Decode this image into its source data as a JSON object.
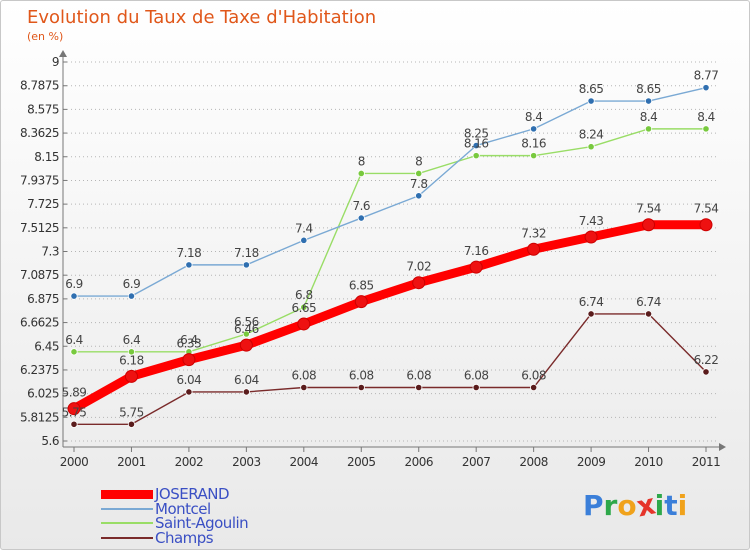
{
  "chart_data": {
    "type": "line",
    "title": "Evolution du Taux de Taxe d'Habitation",
    "subtitle": "(en %)",
    "categories": [
      "2000",
      "2001",
      "2002",
      "2003",
      "2004",
      "2005",
      "2006",
      "2007",
      "2008",
      "2009",
      "2010",
      "2011"
    ],
    "y_ticks": [
      "5.6",
      "5.8125",
      "6.025",
      "6.2375",
      "6.45",
      "6.6625",
      "6.875",
      "7.0875",
      "7.3",
      "7.5125",
      "7.725",
      "7.9375",
      "8.15",
      "8.3625",
      "8.575",
      "8.7875",
      "9"
    ],
    "ylim": [
      5.6,
      9
    ],
    "grid": "horizontal dotted",
    "legend_position": "bottom-left",
    "series": [
      {
        "name": "JOSERAND",
        "color": "#ff0000",
        "values": [
          5.89,
          6.18,
          6.33,
          6.46,
          6.65,
          6.85,
          7.02,
          7.16,
          7.32,
          7.43,
          7.54,
          7.54
        ],
        "labels": [
          "5.89",
          "6.18",
          "6.33",
          "6.46",
          "6.65",
          "6.85",
          "7.02",
          "7.16",
          "7.32",
          "7.43",
          "7.54",
          "7.54"
        ]
      },
      {
        "name": "Montcel",
        "color": "#7aa9d4",
        "values": [
          6.9,
          6.9,
          7.18,
          7.18,
          7.4,
          7.6,
          7.8,
          8.25,
          8.4,
          8.65,
          8.65,
          8.77
        ],
        "labels": [
          "6.9",
          "6.9",
          "7.18",
          "7.18",
          "7.4",
          "7.6",
          "7.8",
          "8.25",
          "8.4",
          "8.65",
          "8.65",
          "8.77"
        ]
      },
      {
        "name": "Saint-Agoulin",
        "color": "#99dd66",
        "values": [
          6.4,
          6.4,
          6.4,
          6.56,
          6.8,
          8,
          8,
          8.16,
          8.16,
          8.24,
          8.4,
          8.4
        ],
        "labels": [
          "6.4",
          "6.4",
          "6.4",
          "6.56",
          "6.8",
          "8",
          "8",
          "8.16",
          "8.16",
          "8.24",
          "8.4",
          "8.4"
        ]
      },
      {
        "name": "Champs",
        "color": "#7a2b2b",
        "values": [
          5.75,
          5.75,
          6.04,
          6.04,
          6.08,
          6.08,
          6.08,
          6.08,
          6.08,
          6.74,
          6.74,
          6.22
        ],
        "labels": [
          "5.75",
          "5.75",
          "6.04",
          "6.04",
          "6.08",
          "6.08",
          "6.08",
          "6.08",
          "6.08",
          "6.74",
          "6.74",
          "6.22"
        ]
      }
    ]
  },
  "logo": {
    "letters": [
      "P",
      "r",
      "o",
      "x",
      "i",
      "t",
      "i"
    ],
    "colors": [
      "#3b7fd9",
      "#2ea84a",
      "#f0a21b",
      "#e5342a",
      "#2ea84a",
      "#3b7fd9",
      "#f0a21b"
    ]
  }
}
